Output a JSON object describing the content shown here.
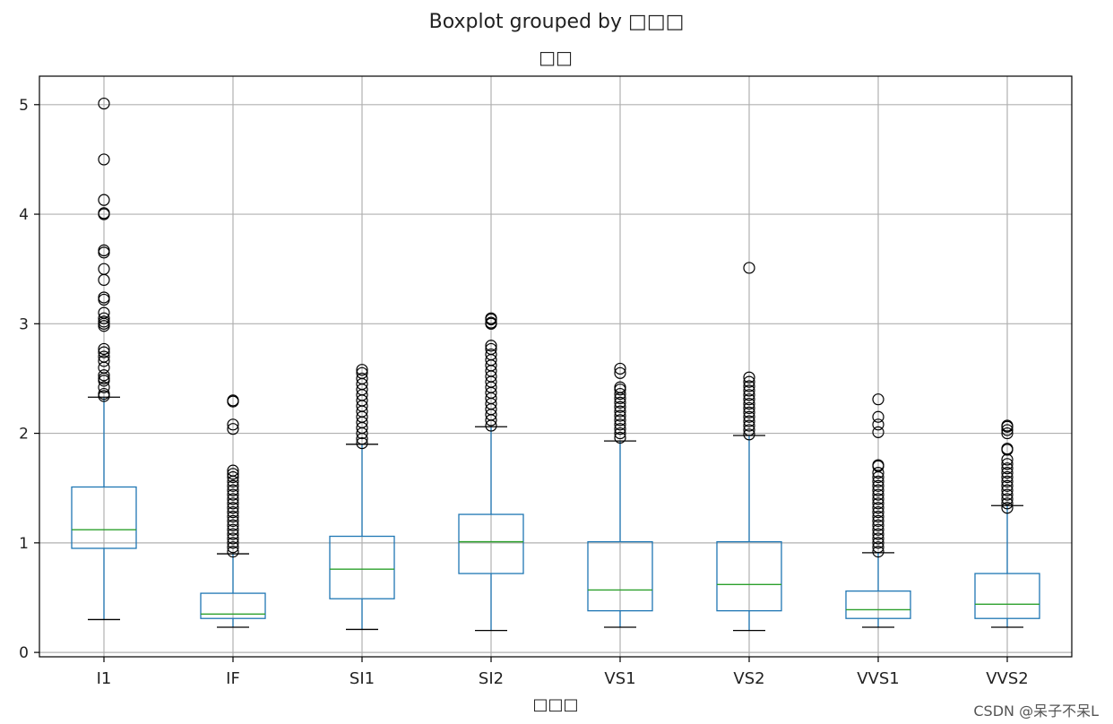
{
  "suptitle": "Boxplot grouped by □□□",
  "title": "□□",
  "watermark": "CSDN @呆子不呆L",
  "chart_data": {
    "type": "boxplot",
    "title": "□□",
    "xlabel": "□□□",
    "ylabel": "",
    "ylim": [
      -0.04,
      5.26
    ],
    "yticks": [
      0,
      1,
      2,
      3,
      4,
      5
    ],
    "grid": true,
    "colors": {
      "box": "#1f77b4",
      "median": "#2ca02c",
      "whisker_cap": "#000000",
      "grid": "#b0b0b0",
      "flier": "#000000"
    },
    "categories": [
      "I1",
      "IF",
      "SI1",
      "SI2",
      "VS1",
      "VS2",
      "VVS1",
      "VVS2"
    ],
    "boxes": [
      {
        "label": "I1",
        "whislo": 0.3,
        "q1": 0.95,
        "med": 1.12,
        "q3": 1.51,
        "whishi": 2.33,
        "fliers": [
          2.34,
          2.36,
          2.42,
          2.48,
          2.5,
          2.53,
          2.6,
          2.66,
          2.7,
          2.74,
          2.77,
          2.98,
          3.0,
          3.02,
          3.05,
          3.1,
          3.22,
          3.24,
          3.4,
          3.5,
          3.65,
          3.67,
          4.0,
          4.01,
          4.13,
          4.5,
          5.01
        ]
      },
      {
        "label": "IF",
        "whislo": 0.23,
        "q1": 0.31,
        "med": 0.35,
        "q3": 0.54,
        "whishi": 0.9,
        "fliers": [
          0.92,
          0.96,
          1.0,
          1.04,
          1.08,
          1.12,
          1.16,
          1.2,
          1.24,
          1.28,
          1.32,
          1.36,
          1.4,
          1.44,
          1.48,
          1.52,
          1.56,
          1.6,
          1.63,
          1.66,
          2.04,
          2.08,
          2.29,
          2.3
        ]
      },
      {
        "label": "SI1",
        "whislo": 0.21,
        "q1": 0.49,
        "med": 0.76,
        "q3": 1.06,
        "whishi": 1.9,
        "fliers": [
          1.91,
          1.95,
          2.0,
          2.05,
          2.1,
          2.15,
          2.2,
          2.25,
          2.3,
          2.35,
          2.4,
          2.45,
          2.5,
          2.55,
          2.58
        ]
      },
      {
        "label": "SI2",
        "whislo": 0.2,
        "q1": 0.72,
        "med": 1.01,
        "q3": 1.26,
        "whishi": 2.06,
        "fliers": [
          2.07,
          2.12,
          2.17,
          2.22,
          2.27,
          2.32,
          2.37,
          2.42,
          2.47,
          2.52,
          2.57,
          2.62,
          2.67,
          2.72,
          2.77,
          2.8,
          3.0,
          3.01,
          3.04,
          3.05
        ]
      },
      {
        "label": "VS1",
        "whislo": 0.23,
        "q1": 0.38,
        "med": 0.57,
        "q3": 1.01,
        "whishi": 1.93,
        "fliers": [
          1.96,
          2.0,
          2.04,
          2.08,
          2.12,
          2.16,
          2.2,
          2.24,
          2.28,
          2.32,
          2.36,
          2.4,
          2.42,
          2.55,
          2.59
        ]
      },
      {
        "label": "VS2",
        "whislo": 0.2,
        "q1": 0.38,
        "med": 0.62,
        "q3": 1.01,
        "whishi": 1.98,
        "fliers": [
          1.99,
          2.03,
          2.07,
          2.11,
          2.15,
          2.19,
          2.23,
          2.27,
          2.31,
          2.35,
          2.39,
          2.43,
          2.47,
          2.51,
          3.51
        ]
      },
      {
        "label": "VVS1",
        "whislo": 0.23,
        "q1": 0.31,
        "med": 0.39,
        "q3": 0.56,
        "whishi": 0.91,
        "fliers": [
          0.92,
          0.96,
          1.0,
          1.04,
          1.08,
          1.12,
          1.16,
          1.2,
          1.24,
          1.28,
          1.32,
          1.36,
          1.4,
          1.44,
          1.48,
          1.52,
          1.56,
          1.6,
          1.64,
          1.7,
          1.71,
          2.01,
          2.08,
          2.15,
          2.31
        ]
      },
      {
        "label": "VVS2",
        "whislo": 0.23,
        "q1": 0.31,
        "med": 0.44,
        "q3": 0.72,
        "whishi": 1.34,
        "fliers": [
          1.32,
          1.36,
          1.4,
          1.44,
          1.48,
          1.52,
          1.56,
          1.6,
          1.64,
          1.68,
          1.72,
          1.76,
          1.85,
          1.86,
          2.0,
          2.03,
          2.06,
          2.07
        ]
      }
    ]
  }
}
